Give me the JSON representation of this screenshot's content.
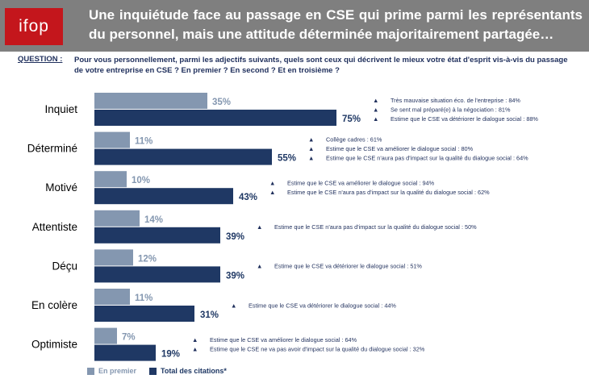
{
  "header": {
    "logo_text": "ifop",
    "title": "Une inquiétude face au passage en CSE qui prime parmi les représentants du personnel, mais une attitude déterminée majoritairement partagée…"
  },
  "question": {
    "label": "QUESTION :",
    "text": "Pour vous personnellement, parmi les adjectifs suivants, quels sont ceux qui décrivent le mieux votre état d'esprit vis-à-vis du passage de votre entreprise en CSE ? En premier ? En second ? Et en troisième ?"
  },
  "colors": {
    "header_bg": "#7f7f7f",
    "logo_bg": "#c4161c",
    "first": "#8497b0",
    "total": "#1f3864",
    "text_dark": "#1f2f5c"
  },
  "chart_data": {
    "type": "bar",
    "orientation": "horizontal",
    "xlim": [
      0,
      100
    ],
    "categories": [
      "Inquiet",
      "Déterminé",
      "Motivé",
      "Attentiste",
      "Déçu",
      "En colère",
      "Optimiste"
    ],
    "series": [
      {
        "name": "En premier",
        "values": [
          35,
          11,
          10,
          14,
          12,
          11,
          7
        ],
        "labels": [
          "35%",
          "11%",
          "10%",
          "14%",
          "12%",
          "11%",
          "7%"
        ]
      },
      {
        "name": "Total des citations*",
        "values": [
          75,
          55,
          43,
          39,
          39,
          31,
          19
        ],
        "labels": [
          "75%",
          "55%",
          "43%",
          "39%",
          "39%",
          "31%",
          "19%"
        ]
      }
    ],
    "annotations": [
      [
        "Très mauvaise situation éco. de l'entreprise : 84%",
        "Se sent mal préparé(e) à la négociation : 81%",
        "Estime que le CSE va détériorer le dialogue social : 88%"
      ],
      [
        "Collège cadres : 61%",
        "Estime que le CSE va améliorer le dialogue social : 80%",
        "Estime que le CSE n'aura pas d'impact sur la qualité du dialogue social : 64%"
      ],
      [
        "Estime que le CSE va améliorer le dialogue social : 94%",
        "Estime que le CSE n'aura pas d'impact sur la qualité du dialogue social : 62%"
      ],
      [
        "Estime que le CSE n'aura pas d'impact sur la qualité du dialogue social : 50%"
      ],
      [
        "Estime que le CSE va détériorer le dialogue social : 51%"
      ],
      [
        "Estime que le CSE va détériorer le dialogue social : 44%"
      ],
      [
        "Estime que le CSE va améliorer le dialogue social : 64%",
        "Estime que le CSE ne va pas avoir d'impact sur la qualité du dialogue social : 32%"
      ]
    ],
    "marker": "▲"
  }
}
